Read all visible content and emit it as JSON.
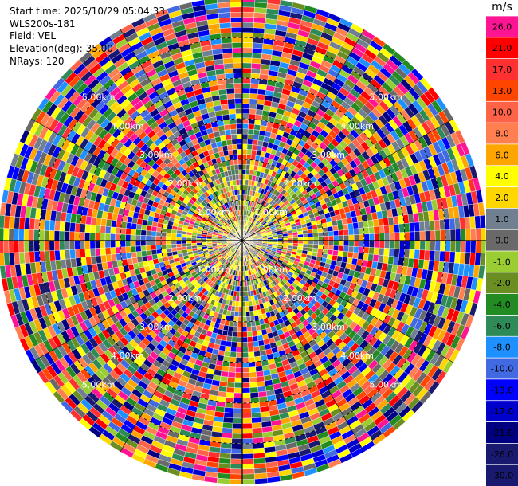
{
  "header": {
    "lines": [
      "Start time: 2025/10/29 05:04:33",
      "WLS200s-181",
      "Field: VEL",
      "Elevation(deg): 35.00",
      "NRays: 120"
    ]
  },
  "colorbar": {
    "unit": "m/s",
    "levels": [
      {
        "label": "26.0",
        "color": "#ff1493"
      },
      {
        "label": "21.0",
        "color": "#ff0000"
      },
      {
        "label": "17.0",
        "color": "#ff3030"
      },
      {
        "label": "13.0",
        "color": "#ff4500"
      },
      {
        "label": "10.0",
        "color": "#ff6347"
      },
      {
        "label": "8.0",
        "color": "#ff7f50"
      },
      {
        "label": "6.0",
        "color": "#ffa500"
      },
      {
        "label": "4.0",
        "color": "#ffff00"
      },
      {
        "label": "2.0",
        "color": "#ffd700"
      },
      {
        "label": "1.0",
        "color": "#708090"
      },
      {
        "label": "0.0",
        "color": "#696969"
      },
      {
        "label": "-1.0",
        "color": "#9acd32"
      },
      {
        "label": "-2.0",
        "color": "#6b8e23"
      },
      {
        "label": "-4.0",
        "color": "#228b22"
      },
      {
        "label": "-6.0",
        "color": "#2e8b57"
      },
      {
        "label": "-8.0",
        "color": "#1e90ff"
      },
      {
        "label": "-10.0",
        "color": "#4169e1"
      },
      {
        "label": "-13.0",
        "color": "#0000ff"
      },
      {
        "label": "-17.0",
        "color": "#0000cd"
      },
      {
        "label": "-21.0",
        "color": "#000080"
      },
      {
        "label": "-26.0",
        "color": "#191970"
      },
      {
        "label": "-30.0",
        "color": "#191970"
      }
    ]
  },
  "chart_data": {
    "type": "heatmap",
    "projection": "polar PPI",
    "n_rays": 120,
    "range_max_km": 6.0,
    "range_ring_labels": [
      {
        "label": "1.00km",
        "range_km": 1.0
      },
      {
        "label": "2.00km",
        "range_km": 2.0
      },
      {
        "label": "3.00km",
        "range_km": 3.0
      },
      {
        "label": "4.00km",
        "range_km": 4.0
      },
      {
        "label": "5.00km",
        "range_km": 5.0
      }
    ],
    "range_ring_label_azimuths_deg": [
      -45,
      45,
      135,
      225
    ],
    "spoke_azimuths_deg": [
      0,
      30,
      60,
      90,
      120,
      150,
      180,
      210,
      240,
      270,
      300,
      330
    ],
    "near_field_values": "mixed yellow, olive, green and gray (approx -2 to 4 m/s)",
    "far_field_values": "noise across full -30 to 26 m/s range"
  }
}
